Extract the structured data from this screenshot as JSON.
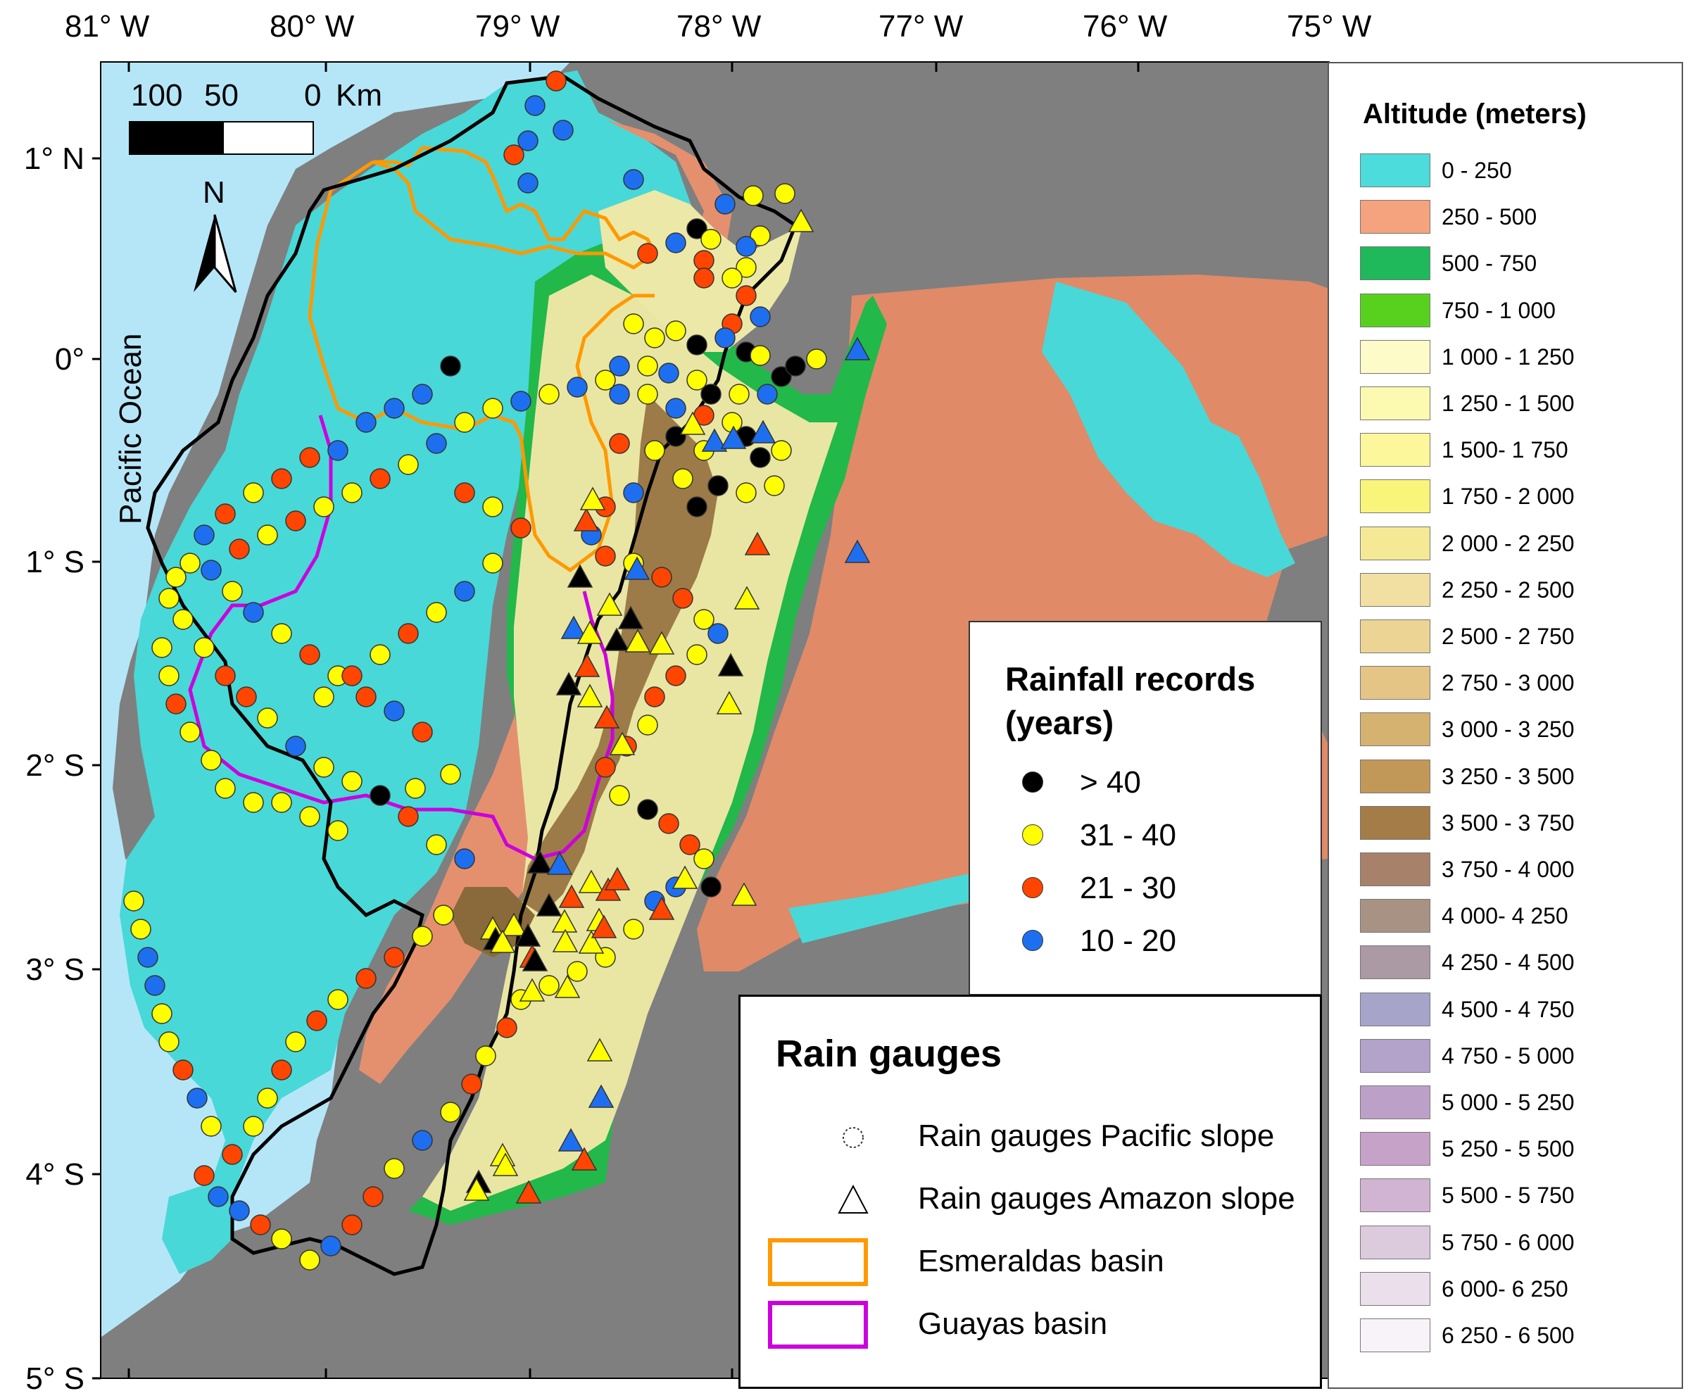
{
  "map": {
    "ocean_label": "Pacific Ocean",
    "lon_ticks": [
      "81° W",
      "80° W",
      "79° W",
      "78° W",
      "77° W",
      "76° W",
      "75° W"
    ],
    "lat_ticks": [
      "1° N",
      "0°",
      "1° S",
      "2° S",
      "3° S",
      "4° S",
      "5° S"
    ],
    "north_arrow_label": "N",
    "scale_bar": {
      "labels": [
        "100",
        "50",
        "0"
      ],
      "unit": "Km"
    },
    "colors": {
      "ocean": "#b5e6f7",
      "lowland": "#48d8d8",
      "amazon_plain": "#e08a68",
      "foothill_green": "#22b84a",
      "highland": "#e9e6a4",
      "peaks": "#8a6a3a",
      "outside": "#7d7d7d"
    }
  },
  "altitude_legend": {
    "title": "Altitude (meters)",
    "classes": [
      {
        "label": "0 - 250",
        "color": "#4ddcdc"
      },
      {
        "label": "250 - 500",
        "color": "#f4a37e"
      },
      {
        "label": "500 - 750",
        "color": "#1fb85a"
      },
      {
        "label": "750 - 1 000",
        "color": "#58d11e"
      },
      {
        "label": "1 000 - 1 250",
        "color": "#fdfbc8"
      },
      {
        "label": "1 250 - 1 500",
        "color": "#fcf9b0"
      },
      {
        "label": "1 500- 1 750",
        "color": "#fbf79a"
      },
      {
        "label": "1 750 - 2 000",
        "color": "#f9f57a"
      },
      {
        "label": "2 000 - 2 250",
        "color": "#f5e996"
      },
      {
        "label": "2 250 - 2 500",
        "color": "#f2e0a2"
      },
      {
        "label": "2 500 - 2 750",
        "color": "#ecd494"
      },
      {
        "label": "2 750 - 3 000",
        "color": "#e4c586"
      },
      {
        "label": "3 000 - 3 250",
        "color": "#d6b270"
      },
      {
        "label": "3 250 - 3 500",
        "color": "#c29858"
      },
      {
        "label": "3 500 - 3 750",
        "color": "#a37c48"
      },
      {
        "label": "3 750 - 4 000",
        "color": "#a8816a"
      },
      {
        "label": "4 000- 4 250",
        "color": "#a89284"
      },
      {
        "label": "4 250 - 4 500",
        "color": "#ab99a4"
      },
      {
        "label": "4 500 - 4 750",
        "color": "#a7a4c9"
      },
      {
        "label": "4 750 - 5 000",
        "color": "#b3a2c9"
      },
      {
        "label": "5 000 - 5 250",
        "color": "#bda0c8"
      },
      {
        "label": "5 250 - 5 500",
        "color": "#c7a2c8"
      },
      {
        "label": "5 500 - 5 750",
        "color": "#d1b4d2"
      },
      {
        "label": "5 750 - 6 000",
        "color": "#dccbdc"
      },
      {
        "label": "6 000- 6 250",
        "color": "#eadfea"
      },
      {
        "label": "6 250 - 6 500",
        "color": "#f8f3f8"
      }
    ]
  },
  "rainfall_legend": {
    "title_line1": "Rainfall records",
    "title_line2": "(years)",
    "classes": [
      {
        "label": "> 40",
        "color": "#000000"
      },
      {
        "label": "31 - 40",
        "color": "#ffff00"
      },
      {
        "label": "21 - 30",
        "color": "#ff4500"
      },
      {
        "label": "10 - 20",
        "color": "#1e6ff0"
      }
    ]
  },
  "gauges_legend": {
    "title": "Rain gauges",
    "items": [
      {
        "label": "Rain gauges Pacific slope",
        "symbol": "circle"
      },
      {
        "label": "Rain gauges Amazon slope",
        "symbol": "triangle"
      },
      {
        "label": "Esmeraldas basin",
        "symbol": "box",
        "color": "#ff9900"
      },
      {
        "label": "Guayas basin",
        "symbol": "box",
        "color": "#cc00dd"
      }
    ]
  }
}
